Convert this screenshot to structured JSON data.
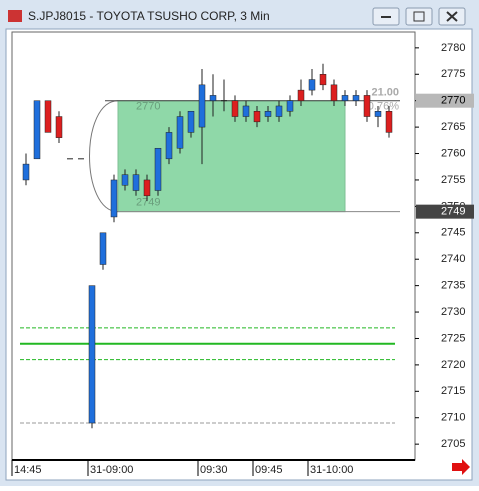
{
  "window_title": "S.JPJ8015 - TOYOTA TSUSHO CORP, 3 Min",
  "chart_data": {
    "type": "candlestick",
    "categories": [
      "14:45",
      null,
      null,
      null,
      null,
      null,
      "31-09:00",
      null,
      null,
      null,
      null,
      null,
      null,
      null,
      null,
      null,
      "09:30",
      null,
      null,
      null,
      null,
      "09:45",
      null,
      null,
      null,
      null,
      "31-10:00",
      null,
      null,
      null,
      null,
      null,
      null,
      null
    ],
    "open": [
      2755,
      2759,
      2770,
      2767,
      2759,
      2759,
      2709,
      2739,
      2748,
      2754,
      2753,
      2755,
      2753,
      2759,
      2761,
      2764,
      2765,
      2770,
      2770,
      2770,
      2767,
      2768,
      2767,
      2767,
      2768,
      2772,
      2772,
      2775,
      2773,
      2770,
      2770,
      2771,
      2767,
      2768
    ],
    "high": [
      2760,
      2770,
      2770,
      2768,
      2759,
      2759,
      2735,
      2745,
      2756,
      2757,
      2757,
      2756,
      2761,
      2765,
      2768,
      2768,
      2776,
      2775,
      2774,
      2771,
      2770,
      2769,
      2769,
      2770,
      2771,
      2774,
      2776,
      2777,
      2774,
      2772,
      2772,
      2772,
      2769,
      2769
    ],
    "low": [
      2754,
      2759,
      2764,
      2762,
      2759,
      2759,
      2708,
      2738,
      2747,
      2753,
      2752,
      2751,
      2752,
      2758,
      2760,
      2763,
      2758,
      2767,
      2768,
      2766,
      2766,
      2765,
      2766,
      2766,
      2767,
      2769,
      2771,
      2772,
      2769,
      2769,
      2769,
      2766,
      2765,
      2763
    ],
    "close": [
      2758,
      2770,
      2764,
      2763,
      2759,
      2759,
      2735,
      2745,
      2755,
      2756,
      2756,
      2752,
      2761,
      2764,
      2767,
      2768,
      2773,
      2771,
      2770,
      2767,
      2769,
      2766,
      2768,
      2769,
      2770,
      2770,
      2774,
      2773,
      2770,
      2771,
      2771,
      2767,
      2768,
      2764
    ],
    "up_color": "#1f6fdc",
    "down_color": "#dc1f1f",
    "flat_color": "#222222",
    "ylim": [
      2702,
      2783
    ],
    "yticks": [
      2705,
      2710,
      2715,
      2720,
      2725,
      2730,
      2735,
      2740,
      2745,
      2750,
      2755,
      2760,
      2765,
      2770,
      2775,
      2780
    ],
    "hlines": [
      {
        "value": 2727,
        "color": "#22b822",
        "style": "dashed"
      },
      {
        "value": 2724,
        "color": "#22b822",
        "style": "solid"
      },
      {
        "value": 2721,
        "color": "#22b822",
        "style": "dashed"
      },
      {
        "value": 2709,
        "color": "#999999",
        "style": "dashed"
      }
    ],
    "range": {
      "high": 2770,
      "low": 2749,
      "diff_label": "21.00",
      "pct_label": "0.76%",
      "color": "#8fd8a8"
    },
    "price_markers": [
      {
        "value": 2770,
        "color": "#b8b8b8"
      },
      {
        "value": 2749,
        "color": "#444444"
      }
    ]
  }
}
